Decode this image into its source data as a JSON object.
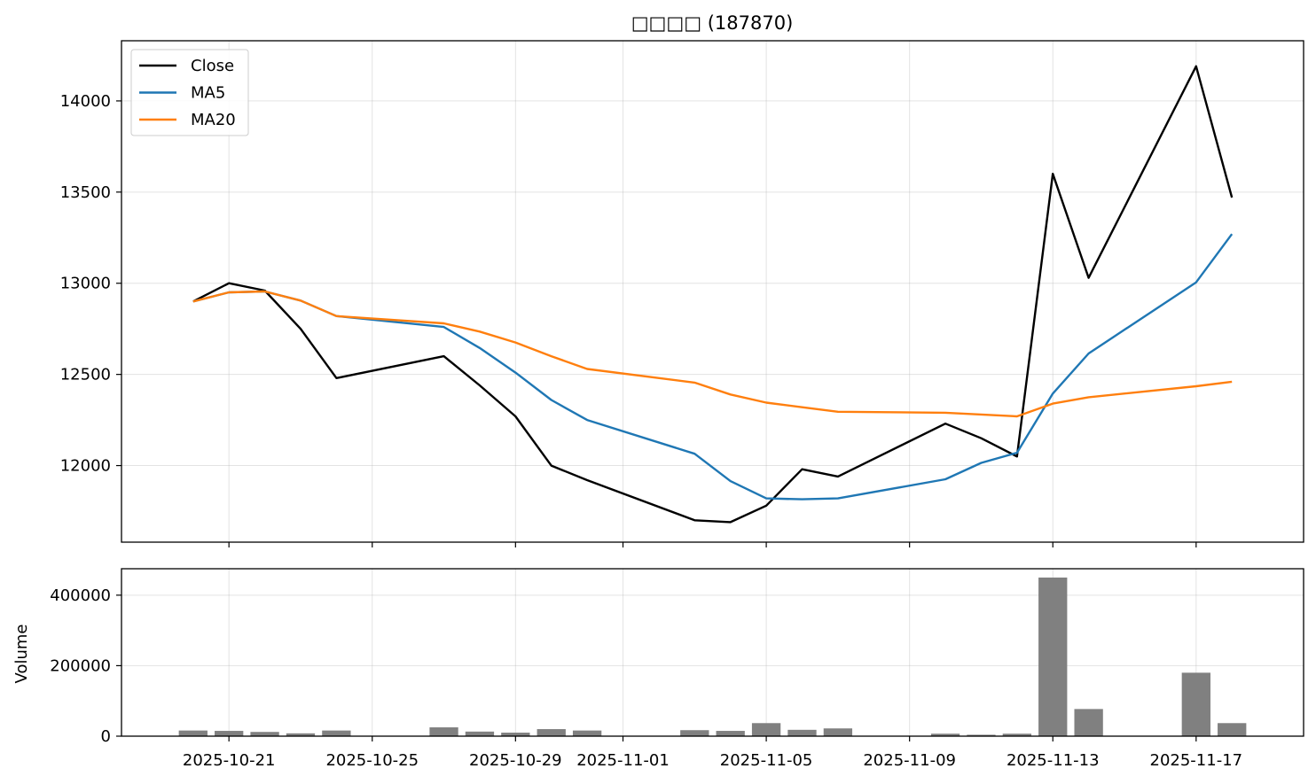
{
  "chart_data": {
    "title": "□□□□ (187870)",
    "price_panel": {
      "type": "line",
      "ylim": [
        11580,
        14330
      ],
      "yticks": [
        12000,
        12500,
        13000,
        13500,
        14000
      ],
      "grid": true,
      "legend_placement": "top-left",
      "series": [
        {
          "name": "Close",
          "color": "#000000",
          "values": [
            [
              "2025-10-20",
              12900
            ],
            [
              "2025-10-21",
              13000
            ],
            [
              "2025-10-22",
              12960
            ],
            [
              "2025-10-23",
              12750
            ],
            [
              "2025-10-24",
              12480
            ],
            [
              "2025-10-27",
              12600
            ],
            [
              "2025-10-28",
              12440
            ],
            [
              "2025-10-29",
              12270
            ],
            [
              "2025-10-30",
              12000
            ],
            [
              "2025-10-31",
              11920
            ],
            [
              "2025-11-03",
              11700
            ],
            [
              "2025-11-04",
              11690
            ],
            [
              "2025-11-05",
              11780
            ],
            [
              "2025-11-06",
              11980
            ],
            [
              "2025-11-07",
              11940
            ],
            [
              "2025-11-10",
              12230
            ],
            [
              "2025-11-11",
              12150
            ],
            [
              "2025-11-12",
              12050
            ],
            [
              "2025-11-13",
              13600
            ],
            [
              "2025-11-14",
              13030
            ],
            [
              "2025-11-17",
              14190
            ],
            [
              "2025-11-18",
              13470
            ]
          ]
        },
        {
          "name": "MA5",
          "color": "#1f77b4",
          "values": [
            [
              "2025-10-20",
              12900
            ],
            [
              "2025-10-21",
              12950
            ],
            [
              "2025-10-22",
              12955
            ],
            [
              "2025-10-23",
              12905
            ],
            [
              "2025-10-24",
              12820
            ],
            [
              "2025-10-27",
              12760
            ],
            [
              "2025-10-28",
              12645
            ],
            [
              "2025-10-29",
              12510
            ],
            [
              "2025-10-30",
              12360
            ],
            [
              "2025-10-31",
              12250
            ],
            [
              "2025-11-03",
              12065
            ],
            [
              "2025-11-04",
              11915
            ],
            [
              "2025-11-05",
              11820
            ],
            [
              "2025-11-06",
              11815
            ],
            [
              "2025-11-07",
              11820
            ],
            [
              "2025-11-10",
              11925
            ],
            [
              "2025-11-11",
              12015
            ],
            [
              "2025-11-12",
              12070
            ],
            [
              "2025-11-13",
              12395
            ],
            [
              "2025-11-14",
              12615
            ],
            [
              "2025-11-17",
              13005
            ],
            [
              "2025-11-18",
              13270
            ]
          ]
        },
        {
          "name": "MA20",
          "color": "#ff7f0e",
          "values": [
            [
              "2025-10-20",
              12900
            ],
            [
              "2025-10-21",
              12950
            ],
            [
              "2025-10-22",
              12955
            ],
            [
              "2025-10-23",
              12905
            ],
            [
              "2025-10-24",
              12820
            ],
            [
              "2025-10-27",
              12780
            ],
            [
              "2025-10-28",
              12735
            ],
            [
              "2025-10-29",
              12675
            ],
            [
              "2025-10-30",
              12600
            ],
            [
              "2025-10-31",
              12530
            ],
            [
              "2025-11-03",
              12455
            ],
            [
              "2025-11-04",
              12390
            ],
            [
              "2025-11-05",
              12345
            ],
            [
              "2025-11-06",
              12320
            ],
            [
              "2025-11-07",
              12295
            ],
            [
              "2025-11-10",
              12290
            ],
            [
              "2025-11-11",
              12280
            ],
            [
              "2025-11-12",
              12270
            ],
            [
              "2025-11-13",
              12340
            ],
            [
              "2025-11-14",
              12375
            ],
            [
              "2025-11-17",
              12435
            ],
            [
              "2025-11-18",
              12460
            ]
          ]
        }
      ]
    },
    "volume_panel": {
      "type": "bar",
      "ylabel": "Volume",
      "ylim": [
        0,
        475000
      ],
      "yticks": [
        0,
        200000,
        400000
      ],
      "color": "#808080",
      "grid": true,
      "values": [
        [
          "2025-10-20",
          16000
        ],
        [
          "2025-10-21",
          15000
        ],
        [
          "2025-10-22",
          12000
        ],
        [
          "2025-10-23",
          8000
        ],
        [
          "2025-10-24",
          16000
        ],
        [
          "2025-10-27",
          25000
        ],
        [
          "2025-10-28",
          13000
        ],
        [
          "2025-10-29",
          10000
        ],
        [
          "2025-10-30",
          20000
        ],
        [
          "2025-10-31",
          16000
        ],
        [
          "2025-11-03",
          17000
        ],
        [
          "2025-11-04",
          15000
        ],
        [
          "2025-11-05",
          37000
        ],
        [
          "2025-11-06",
          18000
        ],
        [
          "2025-11-07",
          22000
        ],
        [
          "2025-11-10",
          7000
        ],
        [
          "2025-11-11",
          4000
        ],
        [
          "2025-11-12",
          7000
        ],
        [
          "2025-11-13",
          450000
        ],
        [
          "2025-11-14",
          77000
        ],
        [
          "2025-11-17",
          180000
        ],
        [
          "2025-11-18",
          37000
        ]
      ]
    },
    "xlim": [
      "2025-10-18",
      "2025-11-20"
    ],
    "xticks": [
      "2025-10-21",
      "2025-10-25",
      "2025-10-29",
      "2025-11-01",
      "2025-11-05",
      "2025-11-09",
      "2025-11-13",
      "2025-11-17"
    ]
  }
}
